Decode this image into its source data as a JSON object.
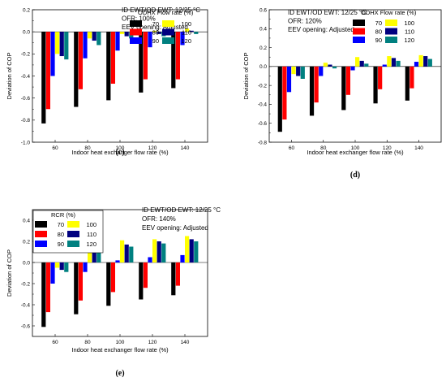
{
  "colors": [
    "#000000",
    "#ff0000",
    "#0000ff",
    "#ffff00",
    "#000080",
    "#008080"
  ],
  "chart_data": [
    {
      "type": "bar",
      "panel_label": "(c)",
      "categories": [
        "60",
        "80",
        "100",
        "120",
        "140"
      ],
      "xlabel": "Indoor heat exchanger flow rate (%)",
      "ylabel": "Deviation of COP",
      "ylim": [
        -1.0,
        0.2
      ],
      "yticks": [
        "-1.0",
        "-0.8",
        "-0.6",
        "-0.4",
        "-0.2",
        "0.0",
        "0.2"
      ],
      "annotation": [
        "ID EWT/OD EWT: 12/25 °C",
        "OFR: 100%",
        "EEV opening: Adjusted"
      ],
      "legend_title": "ODHX Flow rate (%)",
      "series": [
        {
          "name": "70",
          "values": [
            -0.83,
            -0.68,
            -0.62,
            -0.55,
            -0.51
          ]
        },
        {
          "name": "80",
          "values": [
            -0.7,
            -0.52,
            -0.47,
            -0.43,
            -0.43
          ]
        },
        {
          "name": "90",
          "values": [
            -0.4,
            -0.24,
            -0.17,
            -0.14,
            -0.12
          ]
        },
        {
          "name": "100",
          "values": [
            -0.2,
            -0.06,
            -0.02,
            0.01,
            0.03
          ]
        },
        {
          "name": "110",
          "values": [
            -0.22,
            -0.08,
            -0.04,
            -0.02,
            0.01
          ]
        },
        {
          "name": "120",
          "values": [
            -0.25,
            -0.12,
            -0.06,
            -0.04,
            -0.02
          ]
        }
      ]
    },
    {
      "type": "bar",
      "panel_label": "(d)",
      "categories": [
        "60",
        "80",
        "100",
        "120",
        "140"
      ],
      "xlabel": "Indoor heat exchanger flow rate (%)",
      "ylabel": "Deviation of COP",
      "ylim": [
        -0.8,
        0.6
      ],
      "yticks": [
        "-0.8",
        "-0.6",
        "-0.4",
        "-0.2",
        "0.0",
        "0.2",
        "0.4",
        "0.6"
      ],
      "annotation": [
        "ID EWT/OD EWT: 12/25 °C",
        "OFR: 120%",
        "EEV opening: Adjusted"
      ],
      "legend_title": "ODHX Flow rate (%)",
      "series": [
        {
          "name": "70",
          "values": [
            -0.69,
            -0.52,
            -0.46,
            -0.39,
            -0.36
          ]
        },
        {
          "name": "80",
          "values": [
            -0.56,
            -0.38,
            -0.3,
            -0.24,
            -0.23
          ]
        },
        {
          "name": "90",
          "values": [
            -0.27,
            -0.1,
            -0.04,
            0.02,
            0.05
          ]
        },
        {
          "name": "100",
          "values": [
            -0.08,
            0.04,
            0.1,
            0.11,
            0.12
          ]
        },
        {
          "name": "110",
          "values": [
            -0.1,
            0.02,
            0.06,
            0.09,
            0.11
          ]
        },
        {
          "name": "120",
          "values": [
            -0.13,
            -0.02,
            0.03,
            0.06,
            0.08
          ]
        }
      ]
    },
    {
      "type": "bar",
      "panel_label": "(e)",
      "categories": [
        "60",
        "80",
        "100",
        "120",
        "140"
      ],
      "xlabel": "Indoor heat exchanger flow rate (%)",
      "ylabel": "Deviation of COP",
      "ylim": [
        -0.7,
        0.5
      ],
      "yticks": [
        "-0.6",
        "-0.4",
        "-0.2",
        "0.0",
        "0.2",
        "0.4"
      ],
      "annotation": [
        "ID EWT/OD EWT: 12/25 °C",
        "OFR: 140%",
        "EEV opening: Adjusted"
      ],
      "legend_title": "RCR (%)",
      "series": [
        {
          "name": "70",
          "values": [
            -0.61,
            -0.49,
            -0.41,
            -0.35,
            -0.31
          ]
        },
        {
          "name": "80",
          "values": [
            -0.47,
            -0.36,
            -0.28,
            -0.24,
            -0.22
          ]
        },
        {
          "name": "90",
          "values": [
            -0.2,
            -0.09,
            0.02,
            0.05,
            0.07
          ]
        },
        {
          "name": "100",
          "values": [
            -0.05,
            0.14,
            0.21,
            0.22,
            0.25
          ]
        },
        {
          "name": "110",
          "values": [
            -0.07,
            0.11,
            0.17,
            0.2,
            0.22
          ]
        },
        {
          "name": "120",
          "values": [
            -0.09,
            0.1,
            0.15,
            0.18,
            0.2
          ]
        }
      ]
    }
  ]
}
